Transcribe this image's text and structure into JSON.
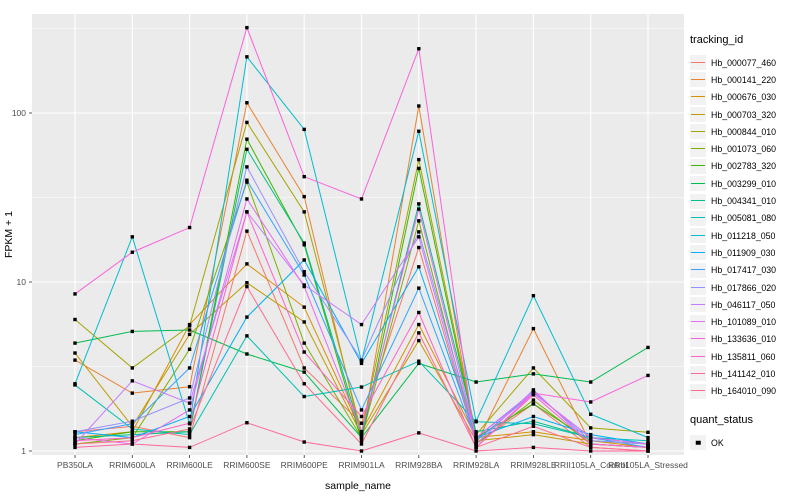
{
  "chart_data": {
    "type": "line",
    "title": "",
    "xlabel": "sample_name",
    "ylabel": "FPKM + 1",
    "y_scale": "log10",
    "ylim": [
      0.95,
      385
    ],
    "y_ticks": [
      1,
      10,
      100
    ],
    "y_tick_labels": [
      "1",
      "10",
      "100"
    ],
    "grid": "on",
    "legend_position": "right",
    "categories": [
      "PB350LA",
      "RRIM600LA",
      "RRIM600LE",
      "RRIM600SE",
      "RRIM600PE",
      "RRIM901LA",
      "RRIM928BA",
      "RRIM928LA",
      "RRIM928LE",
      "RRII105LA_Control",
      "RRII105LA_Stressed"
    ],
    "color_legend_title": "tracking_id",
    "shape_legend_title": "quant_status",
    "shape_legend_items": [
      {
        "label": "OK",
        "shape": "square",
        "color": "#000000"
      }
    ],
    "point_shape": "square",
    "point_color": "#000000",
    "colors": {
      "panel_bg": "#EBEBEB",
      "grid": "#FFFFFF",
      "tick_mark": "#333333",
      "axis_text": "#4D4D4D",
      "axis_title": "#000000",
      "legend_key_bg": "#F2F2F2"
    },
    "series": [
      {
        "name": "Hb_000077_460",
        "color": "#F8766D",
        "values": [
          1.3,
          1.4,
          1.2,
          20,
          3.1,
          1.46,
          16,
          1.1,
          1.9,
          1.05,
          1.0
        ]
      },
      {
        "name": "Hb_000141_220",
        "color": "#EA8331",
        "values": [
          3.45,
          2.2,
          2.4,
          115,
          32,
          1.2,
          110,
          1.1,
          5.3,
          1.1,
          1.05
        ]
      },
      {
        "name": "Hb_000676_030",
        "color": "#D89000",
        "values": [
          1.2,
          1.3,
          5.6,
          12.8,
          7.1,
          1.3,
          5.6,
          1.2,
          1.3,
          1.15,
          1.05
        ]
      },
      {
        "name": "Hb_000703_320",
        "color": "#C09B00",
        "values": [
          3.8,
          1.4,
          4.9,
          9.9,
          5.8,
          1.25,
          4.5,
          1.15,
          1.25,
          1.1,
          1.05
        ]
      },
      {
        "name": "Hb_000844_010",
        "color": "#A3A500",
        "values": [
          6.0,
          3.1,
          5.5,
          88,
          26,
          1.3,
          53,
          1.25,
          3.1,
          1.37,
          1.29
        ]
      },
      {
        "name": "Hb_001073_060",
        "color": "#7CAE00",
        "values": [
          1.1,
          1.2,
          4.0,
          39,
          4.35,
          1.2,
          23,
          1.1,
          2.0,
          1.1,
          1.05
        ]
      },
      {
        "name": "Hb_002783_320",
        "color": "#39B600",
        "values": [
          1.15,
          1.3,
          1.3,
          70,
          16.6,
          1.15,
          47,
          1.2,
          1.9,
          1.15,
          1.1
        ]
      },
      {
        "name": "Hb_003299_010",
        "color": "#00BB4E",
        "values": [
          4.35,
          5.1,
          5.2,
          3.75,
          2.93,
          1.2,
          3.3,
          2.56,
          2.86,
          2.56,
          4.1
        ]
      },
      {
        "name": "Hb_004341_010",
        "color": "#00C087",
        "values": [
          1.2,
          1.25,
          1.3,
          61,
          17,
          1.25,
          29,
          1.3,
          1.5,
          1.2,
          1.1
        ]
      },
      {
        "name": "Hb_005081_080",
        "color": "#00C0B2",
        "values": [
          2.46,
          1.35,
          1.25,
          4.8,
          2.1,
          2.39,
          3.4,
          1.49,
          1.45,
          1.2,
          1.15
        ]
      },
      {
        "name": "Hb_011218_050",
        "color": "#00BDD1",
        "values": [
          2.5,
          18.5,
          1.45,
          215,
          80,
          3.4,
          78,
          1.5,
          8.3,
          1.65,
          1.2
        ]
      },
      {
        "name": "Hb_011909_030",
        "color": "#00B0F6",
        "values": [
          1.3,
          1.2,
          1.6,
          6.2,
          13.5,
          3.3,
          12.3,
          1.2,
          1.6,
          1.25,
          1.1
        ]
      },
      {
        "name": "Hb_017417_030",
        "color": "#35A2FF",
        "values": [
          1.25,
          1.45,
          3.1,
          40,
          11,
          1.75,
          9.2,
          1.15,
          2.2,
          1.2,
          1.05
        ]
      },
      {
        "name": "Hb_017866_020",
        "color": "#9590FF",
        "values": [
          1.3,
          1.5,
          2.06,
          48,
          11.5,
          3.45,
          19.8,
          1.2,
          2.25,
          1.15,
          1.1
        ]
      },
      {
        "name": "Hb_046117_050",
        "color": "#C77CFF",
        "values": [
          1.1,
          2.6,
          1.92,
          26,
          9.6,
          5.6,
          18.5,
          1.1,
          2.3,
          1.1,
          1.05
        ]
      },
      {
        "name": "Hb_101089_010",
        "color": "#E76BF3",
        "values": [
          1.2,
          1.1,
          1.75,
          31,
          9.4,
          1.3,
          27,
          1.2,
          2.2,
          1.2,
          1.1
        ]
      },
      {
        "name": "Hb_133636_010",
        "color": "#FA62DB",
        "values": [
          8.5,
          15,
          21,
          320,
          42,
          31,
          240,
          1.05,
          2.2,
          1.95,
          2.8
        ]
      },
      {
        "name": "Hb_135811_060",
        "color": "#FF61C9",
        "values": [
          1.15,
          1.2,
          1.46,
          26,
          3.85,
          1.6,
          6.6,
          1.05,
          2.15,
          1.1,
          1.05
        ]
      },
      {
        "name": "Hb_141142_010",
        "color": "#FF67A1",
        "values": [
          1.05,
          1.1,
          1.05,
          1.47,
          1.13,
          1.0,
          1.28,
          1.0,
          1.05,
          1.0,
          1.0
        ]
      },
      {
        "name": "Hb_164010_090",
        "color": "#FF6C8F",
        "values": [
          1.1,
          1.15,
          1.35,
          9.4,
          2.5,
          1.1,
          5.0,
          1.05,
          1.4,
          1.05,
          1.0
        ]
      }
    ]
  }
}
